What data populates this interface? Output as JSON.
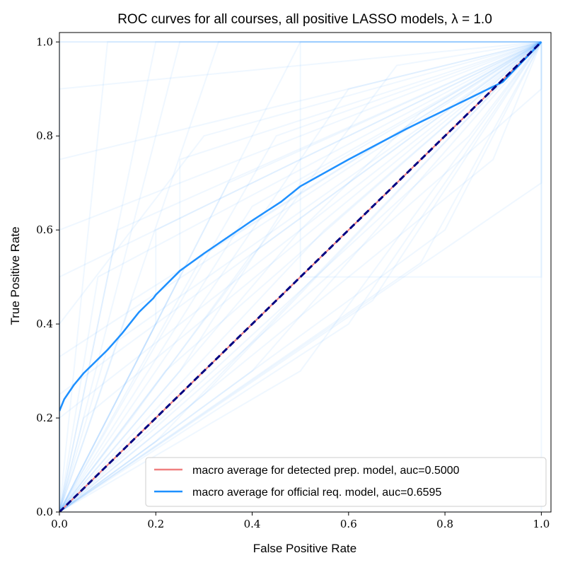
{
  "chart_data": {
    "type": "line",
    "title": "ROC curves for all courses, all positive LASSO models, λ = 1.0",
    "xlabel": "False Positive Rate",
    "ylabel": "True Positive Rate",
    "xlim": [
      0.0,
      1.02
    ],
    "ylim": [
      0.0,
      1.02
    ],
    "x_ticks": [
      "0.0",
      "0.2",
      "0.4",
      "0.6",
      "0.8",
      "1.0"
    ],
    "y_ticks": [
      "0.0",
      "0.2",
      "0.4",
      "0.6",
      "0.8",
      "1.0"
    ],
    "grid": false,
    "legend_position": "lower-right",
    "series": [
      {
        "name": "macro average for detected prep. model, auc=0.5000",
        "color": "#f08080",
        "x": [
          0.0,
          1.0
        ],
        "y": [
          0.0,
          1.0
        ]
      },
      {
        "name": "macro average for official req. model, auc=0.6595",
        "color": "#1e90ff",
        "x": [
          0.0,
          0.01,
          0.03,
          0.05,
          0.07,
          0.1,
          0.13,
          0.165,
          0.18,
          0.195,
          0.2,
          0.25,
          0.3,
          0.35,
          0.4,
          0.46,
          0.5,
          0.6,
          0.72,
          0.75,
          0.85,
          0.92,
          1.0
        ],
        "y": [
          0.215,
          0.24,
          0.27,
          0.295,
          0.315,
          0.345,
          0.38,
          0.425,
          0.44,
          0.455,
          0.462,
          0.513,
          0.55,
          0.585,
          0.62,
          0.66,
          0.693,
          0.75,
          0.815,
          0.83,
          0.88,
          0.915,
          1.0
        ]
      },
      {
        "name": "",
        "color": "#000080",
        "style": "dashed",
        "x": [
          0.0,
          1.0
        ],
        "y": [
          0.0,
          1.0
        ]
      }
    ],
    "background_curves_color": "#1e90ff",
    "background_curves": [
      {
        "x": [
          0,
          0,
          1
        ],
        "y": [
          0,
          1,
          1
        ]
      },
      {
        "x": [
          0,
          0,
          1,
          1
        ],
        "y": [
          0,
          1,
          1,
          1
        ]
      },
      {
        "x": [
          0,
          0.5,
          1
        ],
        "y": [
          0,
          1,
          1
        ]
      },
      {
        "x": [
          0,
          0.25,
          1
        ],
        "y": [
          0,
          1,
          1
        ]
      },
      {
        "x": [
          0,
          0.33,
          1
        ],
        "y": [
          0,
          1,
          1
        ]
      },
      {
        "x": [
          0,
          0.2,
          1
        ],
        "y": [
          0,
          1,
          1
        ]
      },
      {
        "x": [
          0,
          0.1,
          1
        ],
        "y": [
          0,
          1,
          1
        ]
      },
      {
        "x": [
          0,
          0,
          1
        ],
        "y": [
          0,
          0.5,
          1
        ]
      },
      {
        "x": [
          0,
          0,
          1
        ],
        "y": [
          0,
          0.33,
          1
        ]
      },
      {
        "x": [
          0,
          0,
          1
        ],
        "y": [
          0,
          0.75,
          1
        ]
      },
      {
        "x": [
          0,
          0,
          1
        ],
        "y": [
          0,
          0.9,
          1
        ]
      },
      {
        "x": [
          0,
          0,
          1
        ],
        "y": [
          0,
          0.25,
          1
        ]
      },
      {
        "x": [
          0,
          0,
          1
        ],
        "y": [
          0,
          0.6,
          1
        ]
      },
      {
        "x": [
          0,
          0.5,
          0.5,
          1
        ],
        "y": [
          0,
          0.5,
          1,
          1
        ]
      },
      {
        "x": [
          0,
          0.2,
          0.2,
          1
        ],
        "y": [
          0,
          0.4,
          0.6,
          1
        ]
      },
      {
        "x": [
          0,
          0.25,
          0.25,
          1
        ],
        "y": [
          0,
          0.5,
          0.75,
          1
        ]
      },
      {
        "x": [
          0,
          0.5,
          1,
          1
        ],
        "y": [
          0,
          0.5,
          0.5,
          1
        ]
      },
      {
        "x": [
          0,
          1,
          1
        ],
        "y": [
          0,
          0,
          1
        ]
      },
      {
        "x": [
          0,
          1,
          1
        ],
        "y": [
          0,
          0.7,
          1
        ]
      },
      {
        "x": [
          0,
          1,
          1
        ],
        "y": [
          0,
          0.9,
          1
        ]
      },
      {
        "x": [
          0,
          0.75,
          1
        ],
        "y": [
          0,
          0.53,
          1
        ]
      },
      {
        "x": [
          0,
          0.5,
          1
        ],
        "y": [
          0,
          0.3,
          1
        ]
      },
      {
        "x": [
          0,
          0.6,
          1
        ],
        "y": [
          0,
          0.4,
          1
        ]
      },
      {
        "x": [
          0,
          0.4,
          1
        ],
        "y": [
          0,
          0.3,
          1
        ]
      },
      {
        "x": [
          0,
          0.8,
          1
        ],
        "y": [
          0,
          0.6,
          1
        ]
      },
      {
        "x": [
          0,
          0.3,
          1
        ],
        "y": [
          0,
          0.55,
          1
        ]
      },
      {
        "x": [
          0,
          0.15,
          1
        ],
        "y": [
          0,
          0.45,
          1
        ]
      },
      {
        "x": [
          0,
          0.35,
          1
        ],
        "y": [
          0,
          0.7,
          1
        ]
      },
      {
        "x": [
          0,
          0.45,
          1
        ],
        "y": [
          0,
          0.8,
          1
        ]
      },
      {
        "x": [
          0,
          0.1,
          1
        ],
        "y": [
          0,
          0.35,
          1
        ]
      },
      {
        "x": [
          0,
          0.05,
          1
        ],
        "y": [
          0,
          0.2,
          1
        ]
      },
      {
        "x": [
          0,
          0.6,
          1
        ],
        "y": [
          0,
          0.9,
          1
        ]
      },
      {
        "x": [
          0,
          0.7,
          1
        ],
        "y": [
          0,
          0.95,
          1
        ]
      },
      {
        "x": [
          0,
          0.3,
          1
        ],
        "y": [
          0,
          0.25,
          1
        ]
      },
      {
        "x": [
          0,
          0.2,
          1
        ],
        "y": [
          0,
          0.15,
          1
        ]
      },
      {
        "x": [
          0,
          0.9,
          1
        ],
        "y": [
          0,
          0.75,
          1
        ]
      },
      {
        "x": [
          0,
          0.4,
          1
        ],
        "y": [
          0,
          0.65,
          1
        ]
      },
      {
        "x": [
          0,
          0.12,
          1
        ],
        "y": [
          0,
          0.6,
          1
        ]
      },
      {
        "x": [
          0,
          0.08,
          1
        ],
        "y": [
          0,
          0.5,
          1
        ]
      },
      {
        "x": [
          0,
          0.55,
          1
        ],
        "y": [
          0,
          0.6,
          1
        ]
      },
      {
        "x": [
          0,
          0,
          0.5,
          1
        ],
        "y": [
          0,
          0.2,
          0.6,
          1
        ]
      },
      {
        "x": [
          0,
          0,
          0.3,
          1
        ],
        "y": [
          0,
          0.4,
          0.8,
          1
        ]
      },
      {
        "x": [
          0,
          0.25,
          0.5,
          1
        ],
        "y": [
          0,
          0.3,
          0.7,
          1
        ]
      },
      {
        "x": [
          0,
          0.15,
          0.4,
          1
        ],
        "y": [
          0,
          0.2,
          0.55,
          1
        ]
      },
      {
        "x": [
          0,
          0.5,
          0.75,
          1
        ],
        "y": [
          0,
          0.6,
          0.85,
          1
        ]
      },
      {
        "x": [
          0,
          0.65,
          1
        ],
        "y": [
          0,
          0.45,
          1
        ]
      },
      {
        "x": [
          0,
          0.85,
          1
        ],
        "y": [
          0,
          0.8,
          1
        ]
      },
      {
        "x": [
          0,
          0.22,
          1
        ],
        "y": [
          0,
          0.3,
          1
        ]
      }
    ]
  }
}
